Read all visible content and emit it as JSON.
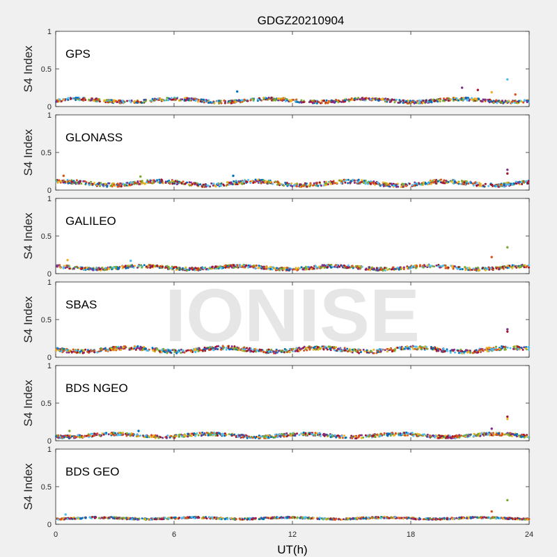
{
  "chart_data": {
    "type": "scatter",
    "title": "GDGZ20210904",
    "xlabel": "UT(h)",
    "xlim": [
      0,
      24
    ],
    "xticks": [
      "0",
      "6",
      "12",
      "18",
      "24"
    ],
    "watermark": "IONISE",
    "series_colors": [
      "#0072BD",
      "#D95319",
      "#EDB120",
      "#7E2F8E",
      "#77AC30",
      "#4DBEEE",
      "#A2142F"
    ],
    "panels": [
      {
        "label": "GPS",
        "ylabel": "S4 Index",
        "ylim": [
          0,
          1
        ],
        "yticks": [
          "0",
          "0.5",
          "1"
        ],
        "baseline": 0.08,
        "spread": 0.04,
        "spikes": [
          {
            "x": 9.2,
            "y": 0.2
          },
          {
            "x": 20.6,
            "y": 0.25
          },
          {
            "x": 21.4,
            "y": 0.22
          },
          {
            "x": 22.1,
            "y": 0.19
          },
          {
            "x": 22.9,
            "y": 0.36
          },
          {
            "x": 23.3,
            "y": 0.16
          }
        ]
      },
      {
        "label": "GLONASS",
        "ylabel": "S4 Index",
        "ylim": [
          0,
          1
        ],
        "yticks": [
          "0",
          "0.5",
          "1"
        ],
        "baseline": 0.09,
        "spread": 0.05,
        "spikes": [
          {
            "x": 0.4,
            "y": 0.19
          },
          {
            "x": 4.3,
            "y": 0.18
          },
          {
            "x": 9.0,
            "y": 0.19
          },
          {
            "x": 22.9,
            "y": 0.27
          },
          {
            "x": 22.9,
            "y": 0.22
          }
        ]
      },
      {
        "label": "GALILEO",
        "ylabel": "S4 Index",
        "ylim": [
          0,
          1
        ],
        "yticks": [
          "0",
          "0.5",
          "1"
        ],
        "baseline": 0.08,
        "spread": 0.04,
        "spikes": [
          {
            "x": 0.6,
            "y": 0.18
          },
          {
            "x": 3.8,
            "y": 0.17
          },
          {
            "x": 22.1,
            "y": 0.22
          },
          {
            "x": 22.9,
            "y": 0.35
          }
        ]
      },
      {
        "label": "SBAS",
        "ylabel": "S4 Index",
        "ylim": [
          0,
          1
        ],
        "yticks": [
          "0",
          "0.5",
          "1"
        ],
        "baseline": 0.1,
        "spread": 0.05,
        "spikes": [
          {
            "x": 22.9,
            "y": 0.37
          },
          {
            "x": 22.9,
            "y": 0.34
          }
        ]
      },
      {
        "label": "BDS NGEO",
        "ylabel": "S4 Index",
        "ylim": [
          0,
          1
        ],
        "yticks": [
          "0",
          "0.5",
          "1"
        ],
        "baseline": 0.07,
        "spread": 0.04,
        "spikes": [
          {
            "x": 0.7,
            "y": 0.13
          },
          {
            "x": 4.2,
            "y": 0.13
          },
          {
            "x": 22.1,
            "y": 0.16
          },
          {
            "x": 22.9,
            "y": 0.32
          },
          {
            "x": 22.9,
            "y": 0.29
          }
        ]
      },
      {
        "label": "BDS GEO",
        "ylabel": "S4 Index",
        "ylim": [
          0,
          1
        ],
        "yticks": [
          "0",
          "0.5",
          "1"
        ],
        "baseline": 0.08,
        "spread": 0.02,
        "spikes": [
          {
            "x": 0.5,
            "y": 0.13
          },
          {
            "x": 22.1,
            "y": 0.17
          },
          {
            "x": 22.9,
            "y": 0.32
          }
        ]
      }
    ]
  }
}
